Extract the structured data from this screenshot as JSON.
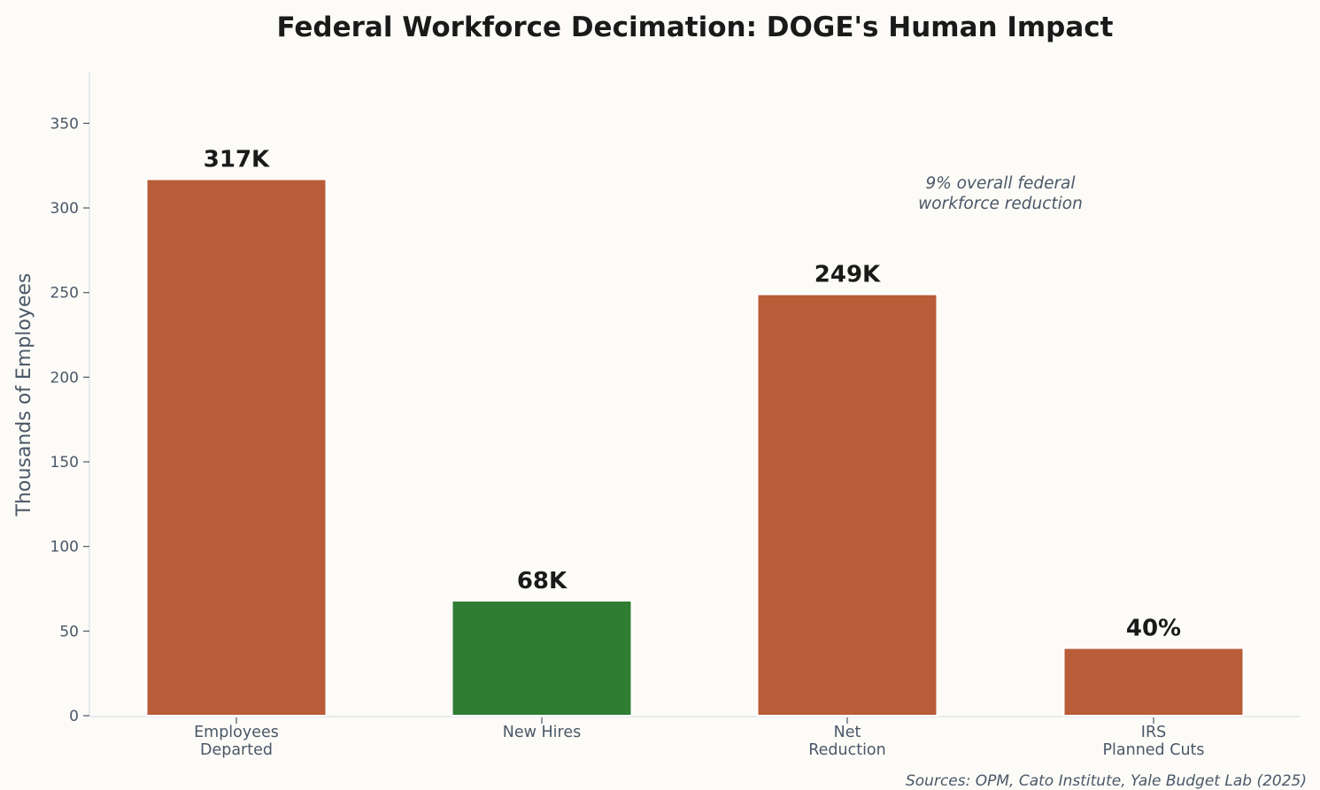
{
  "chart_data": {
    "type": "bar",
    "title": "Federal Workforce Decimation: DOGE's Human Impact",
    "xlabel": "",
    "ylabel": "Thousands of Employees",
    "ylim": [
      0,
      380
    ],
    "yticks": [
      0,
      50,
      100,
      150,
      200,
      250,
      300,
      350
    ],
    "categories": [
      "Employees\nDeparted",
      "New Hires",
      "Net\nReduction",
      "IRS\nPlanned Cuts"
    ],
    "values": [
      317,
      68,
      249,
      40
    ],
    "data_labels": [
      "317K",
      "68K",
      "249K",
      "40%"
    ],
    "bar_colors": [
      "#b95c38",
      "#2e7d32",
      "#b95c38",
      "#b95c38"
    ],
    "annotation": "9% overall federal\nworkforce reduction",
    "source": "Sources: OPM, Cato Institute, Yale Budget Lab (2025)",
    "grid": false,
    "legend": "none"
  },
  "colors": {
    "background": "#fcfbf7",
    "axis": "#dde4ea",
    "tick_text": "#4a5868",
    "title": "#1a1a1a"
  }
}
